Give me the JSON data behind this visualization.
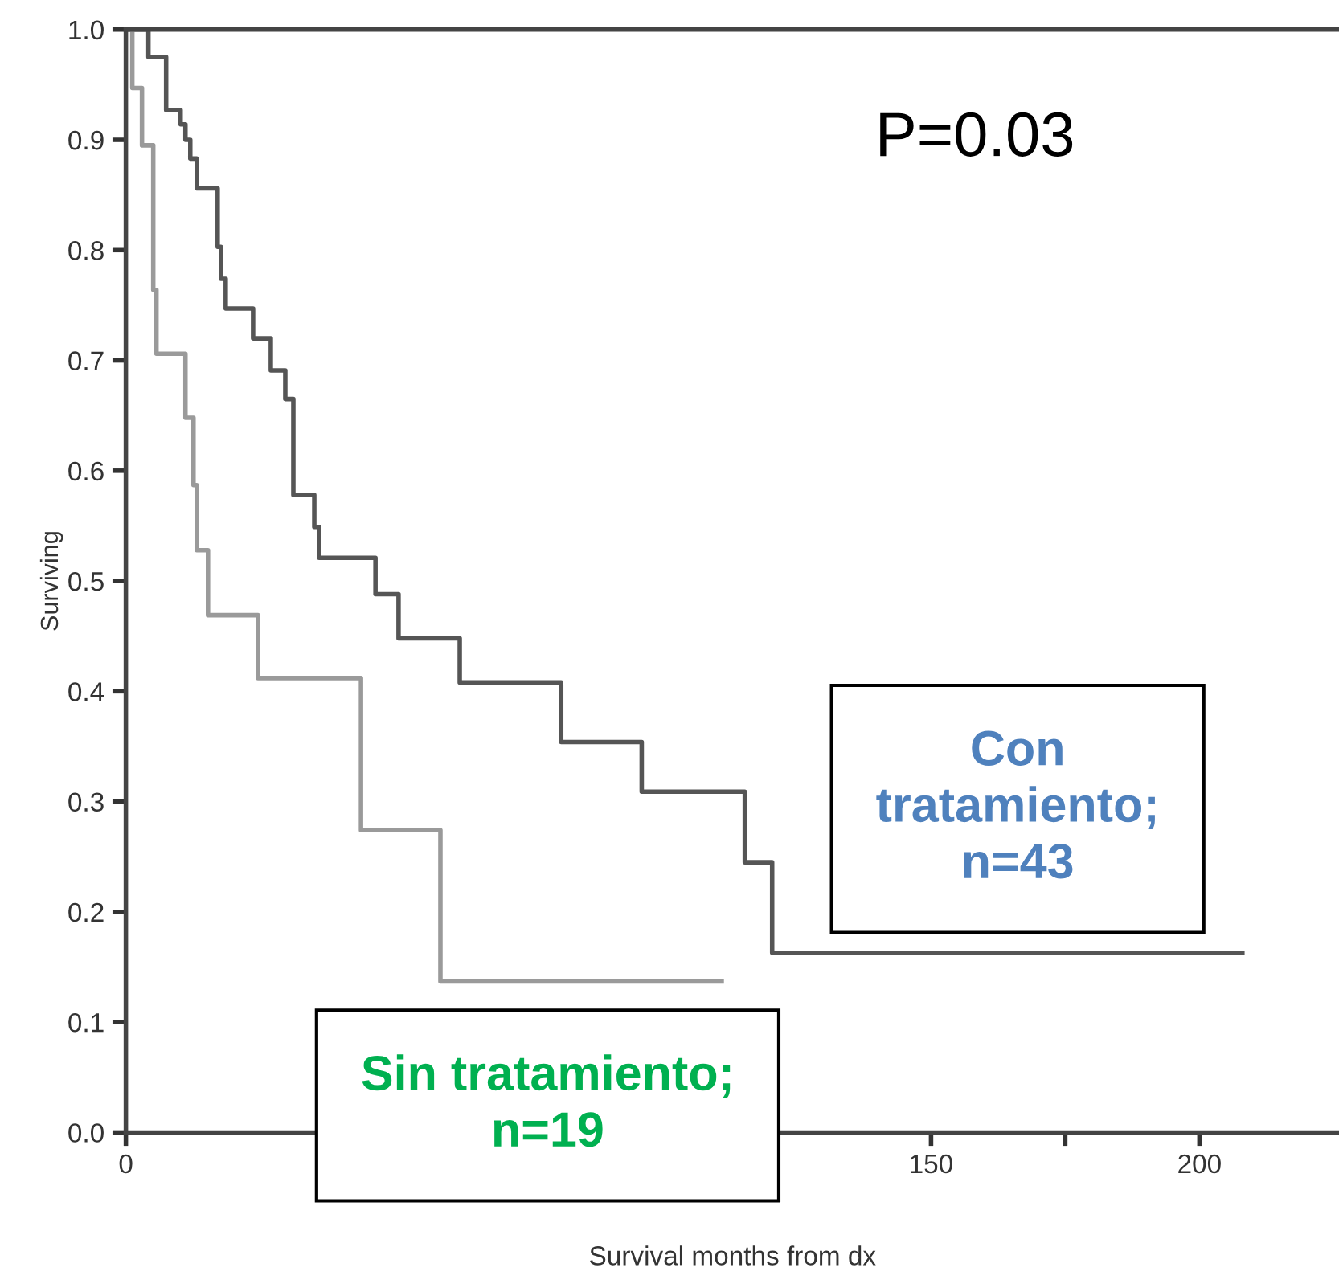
{
  "chart_data": {
    "type": "step",
    "xlabel": "Survival months from dx",
    "ylabel": "Surviving",
    "annotations": [
      "P=0.03"
    ],
    "series": [
      {
        "name": "Con\ntratamiento;\nn=43",
        "color": "#555555",
        "x": [
          0,
          4.2,
          7.5,
          10.2,
          11.1,
          12.0,
          13.2,
          17.1,
          17.7,
          18.6,
          23.7,
          27.0,
          29.7,
          31.2,
          35.1,
          36.0,
          46.5,
          50.8,
          62.2,
          81.1,
          96.1,
          115.3,
          120.4,
          208
        ],
        "values": [
          1,
          0.975,
          0.927,
          0.914,
          0.9,
          0.883,
          0.856,
          0.803,
          0.774,
          0.747,
          0.72,
          0.691,
          0.665,
          0.578,
          0.549,
          0.521,
          0.488,
          0.448,
          0.408,
          0.354,
          0.309,
          0.245,
          0.163,
          0.163
        ]
      },
      {
        "name": "Sin tratamiento;\nn=19",
        "color": "#9a9a9a",
        "x": [
          0,
          1.2,
          3,
          5.1,
          5.7,
          11.1,
          12.6,
          13.2,
          15.3,
          24.6,
          43.8,
          58.6,
          111
        ],
        "values": [
          1,
          0.947,
          0.895,
          0.764,
          0.706,
          0.648,
          0.587,
          0.528,
          0.469,
          0.412,
          0.274,
          0.137,
          0.137
        ]
      }
    ],
    "xlim": [
      0,
      226
    ],
    "ylim": [
      0,
      1
    ],
    "xticks": [
      0,
      150,
      {
        "value": 175,
        "label": null
      },
      200
    ],
    "yticks": [
      {
        "value": 0,
        "label": "0.0"
      },
      0.1,
      0.2,
      0.3,
      0.4,
      0.5,
      0.6,
      0.7,
      0.8,
      0.9,
      {
        "value": 1,
        "label": "1.0"
      }
    ],
    "grid": false,
    "legend": false,
    "line_style": "solid"
  }
}
